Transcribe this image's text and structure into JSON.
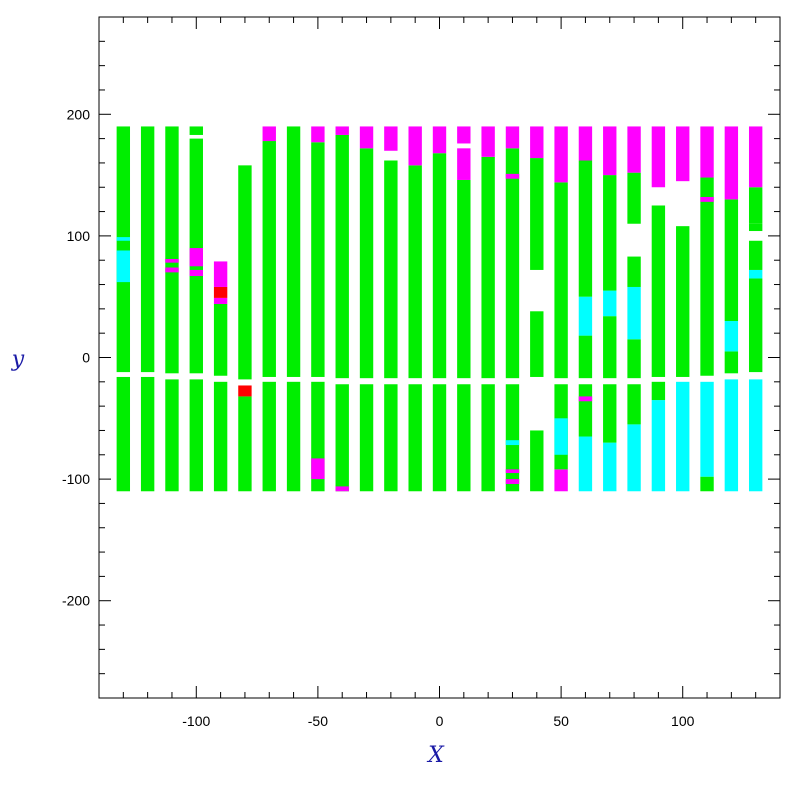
{
  "chart_data": {
    "type": "heatmap",
    "title": "",
    "xlabel": "X",
    "ylabel": "y",
    "xlim": [
      -140,
      140
    ],
    "ylim": [
      -280,
      280
    ],
    "x_ticks": [
      -100,
      -50,
      0,
      50,
      100
    ],
    "y_ticks": [
      -200,
      -100,
      0,
      100,
      200
    ],
    "grid": false,
    "legend": "none",
    "colors": {
      "green": "#00ee00",
      "magenta": "#ff00ff",
      "cyan": "#00ffff",
      "red": "#ff0000",
      "background": "#ffffff"
    },
    "strip_width": 5.5,
    "strips": [
      {
        "x": -130,
        "segments": [
          {
            "y0": -110,
            "y1": -16,
            "color": "green"
          },
          {
            "y0": -12,
            "y1": 190,
            "color": "green"
          },
          {
            "y0": 62,
            "y1": 88,
            "color": "cyan"
          },
          {
            "y0": 96,
            "y1": 99,
            "color": "cyan"
          }
        ]
      },
      {
        "x": -120,
        "segments": [
          {
            "y0": -110,
            "y1": -16,
            "color": "green"
          },
          {
            "y0": -12,
            "y1": 190,
            "color": "green"
          }
        ]
      },
      {
        "x": -110,
        "segments": [
          {
            "y0": -110,
            "y1": -18,
            "color": "green"
          },
          {
            "y0": -13,
            "y1": 190,
            "color": "green"
          },
          {
            "y0": 70,
            "y1": 74,
            "color": "magenta"
          },
          {
            "y0": 78,
            "y1": 81,
            "color": "magenta"
          }
        ]
      },
      {
        "x": -100,
        "segments": [
          {
            "y0": -110,
            "y1": -18,
            "color": "green"
          },
          {
            "y0": -13,
            "y1": 180,
            "color": "green"
          },
          {
            "y0": 183,
            "y1": 190,
            "color": "green"
          },
          {
            "y0": 67,
            "y1": 72,
            "color": "magenta"
          },
          {
            "y0": 75,
            "y1": 90,
            "color": "magenta"
          }
        ]
      },
      {
        "x": -90,
        "segments": [
          {
            "y0": -110,
            "y1": -20,
            "color": "green"
          },
          {
            "y0": -15,
            "y1": 44,
            "color": "green"
          },
          {
            "y0": 44,
            "y1": 49,
            "color": "magenta"
          },
          {
            "y0": 49,
            "y1": 58,
            "color": "red"
          },
          {
            "y0": 58,
            "y1": 79,
            "color": "magenta"
          }
        ]
      },
      {
        "x": -80,
        "segments": [
          {
            "y0": -110,
            "y1": -32,
            "color": "green"
          },
          {
            "y0": -32,
            "y1": -23,
            "color": "red"
          },
          {
            "y0": -18,
            "y1": 158,
            "color": "green"
          }
        ]
      },
      {
        "x": -70,
        "segments": [
          {
            "y0": -110,
            "y1": -20,
            "color": "green"
          },
          {
            "y0": -16,
            "y1": 178,
            "color": "green"
          },
          {
            "y0": 178,
            "y1": 190,
            "color": "magenta"
          }
        ]
      },
      {
        "x": -60,
        "segments": [
          {
            "y0": -110,
            "y1": -20,
            "color": "green"
          },
          {
            "y0": -16,
            "y1": 190,
            "color": "green"
          }
        ]
      },
      {
        "x": -50,
        "segments": [
          {
            "y0": -110,
            "y1": -20,
            "color": "green"
          },
          {
            "y0": -100,
            "y1": -83,
            "color": "magenta"
          },
          {
            "y0": -16,
            "y1": 177,
            "color": "green"
          },
          {
            "y0": 177,
            "y1": 190,
            "color": "magenta"
          }
        ]
      },
      {
        "x": -40,
        "segments": [
          {
            "y0": -110,
            "y1": -22,
            "color": "green"
          },
          {
            "y0": -110,
            "y1": -106,
            "color": "magenta"
          },
          {
            "y0": -17,
            "y1": 183,
            "color": "green"
          },
          {
            "y0": 183,
            "y1": 190,
            "color": "magenta"
          }
        ]
      },
      {
        "x": -30,
        "segments": [
          {
            "y0": -110,
            "y1": -22,
            "color": "green"
          },
          {
            "y0": -17,
            "y1": 172,
            "color": "green"
          },
          {
            "y0": 172,
            "y1": 190,
            "color": "magenta"
          }
        ]
      },
      {
        "x": -20,
        "segments": [
          {
            "y0": -110,
            "y1": -22,
            "color": "green"
          },
          {
            "y0": -17,
            "y1": 162,
            "color": "green"
          },
          {
            "y0": 170,
            "y1": 190,
            "color": "magenta"
          }
        ]
      },
      {
        "x": -10,
        "segments": [
          {
            "y0": -110,
            "y1": -22,
            "color": "green"
          },
          {
            "y0": -17,
            "y1": 158,
            "color": "green"
          },
          {
            "y0": 158,
            "y1": 190,
            "color": "magenta"
          }
        ]
      },
      {
        "x": 0,
        "segments": [
          {
            "y0": -110,
            "y1": -22,
            "color": "green"
          },
          {
            "y0": -17,
            "y1": 168,
            "color": "green"
          },
          {
            "y0": 168,
            "y1": 190,
            "color": "magenta"
          }
        ]
      },
      {
        "x": 10,
        "segments": [
          {
            "y0": -110,
            "y1": -22,
            "color": "green"
          },
          {
            "y0": -17,
            "y1": 146,
            "color": "green"
          },
          {
            "y0": 146,
            "y1": 172,
            "color": "magenta"
          },
          {
            "y0": 176,
            "y1": 190,
            "color": "magenta"
          }
        ]
      },
      {
        "x": 20,
        "segments": [
          {
            "y0": -110,
            "y1": -22,
            "color": "green"
          },
          {
            "y0": -17,
            "y1": 165,
            "color": "green"
          },
          {
            "y0": 165,
            "y1": 190,
            "color": "magenta"
          }
        ]
      },
      {
        "x": 30,
        "segments": [
          {
            "y0": -110,
            "y1": -22,
            "color": "green"
          },
          {
            "y0": -104,
            "y1": -100,
            "color": "magenta"
          },
          {
            "y0": -95,
            "y1": -92,
            "color": "magenta"
          },
          {
            "y0": -72,
            "y1": -68,
            "color": "cyan"
          },
          {
            "y0": -17,
            "y1": 172,
            "color": "green"
          },
          {
            "y0": 147,
            "y1": 151,
            "color": "magenta"
          },
          {
            "y0": 172,
            "y1": 190,
            "color": "magenta"
          }
        ]
      },
      {
        "x": 40,
        "segments": [
          {
            "y0": -110,
            "y1": -60,
            "color": "green"
          },
          {
            "y0": -16,
            "y1": 38,
            "color": "green"
          },
          {
            "y0": 72,
            "y1": 164,
            "color": "green"
          },
          {
            "y0": 164,
            "y1": 190,
            "color": "magenta"
          }
        ]
      },
      {
        "x": 50,
        "segments": [
          {
            "y0": -110,
            "y1": -92,
            "color": "magenta"
          },
          {
            "y0": -92,
            "y1": -22,
            "color": "green"
          },
          {
            "y0": -80,
            "y1": -50,
            "color": "cyan"
          },
          {
            "y0": -17,
            "y1": 144,
            "color": "green"
          },
          {
            "y0": 144,
            "y1": 190,
            "color": "magenta"
          }
        ]
      },
      {
        "x": 60,
        "segments": [
          {
            "y0": -110,
            "y1": -65,
            "color": "cyan"
          },
          {
            "y0": -65,
            "y1": -22,
            "color": "green"
          },
          {
            "y0": -36,
            "y1": -32,
            "color": "magenta"
          },
          {
            "y0": -17,
            "y1": 18,
            "color": "green"
          },
          {
            "y0": 18,
            "y1": 50,
            "color": "cyan"
          },
          {
            "y0": 50,
            "y1": 162,
            "color": "green"
          },
          {
            "y0": 162,
            "y1": 190,
            "color": "magenta"
          }
        ]
      },
      {
        "x": 70,
        "segments": [
          {
            "y0": -110,
            "y1": -70,
            "color": "cyan"
          },
          {
            "y0": -70,
            "y1": -22,
            "color": "green"
          },
          {
            "y0": -17,
            "y1": 34,
            "color": "green"
          },
          {
            "y0": 34,
            "y1": 55,
            "color": "cyan"
          },
          {
            "y0": 55,
            "y1": 150,
            "color": "green"
          },
          {
            "y0": 150,
            "y1": 190,
            "color": "magenta"
          }
        ]
      },
      {
        "x": 80,
        "segments": [
          {
            "y0": -110,
            "y1": -55,
            "color": "cyan"
          },
          {
            "y0": -55,
            "y1": -22,
            "color": "green"
          },
          {
            "y0": -17,
            "y1": 15,
            "color": "green"
          },
          {
            "y0": 15,
            "y1": 58,
            "color": "cyan"
          },
          {
            "y0": 58,
            "y1": 83,
            "color": "green"
          },
          {
            "y0": 110,
            "y1": 152,
            "color": "green"
          },
          {
            "y0": 152,
            "y1": 190,
            "color": "magenta"
          }
        ]
      },
      {
        "x": 90,
        "segments": [
          {
            "y0": -110,
            "y1": -35,
            "color": "cyan"
          },
          {
            "y0": -35,
            "y1": -20,
            "color": "green"
          },
          {
            "y0": -16,
            "y1": 125,
            "color": "green"
          },
          {
            "y0": 140,
            "y1": 190,
            "color": "magenta"
          }
        ]
      },
      {
        "x": 100,
        "segments": [
          {
            "y0": -110,
            "y1": -20,
            "color": "cyan"
          },
          {
            "y0": -16,
            "y1": 108,
            "color": "green"
          },
          {
            "y0": 145,
            "y1": 190,
            "color": "magenta"
          }
        ]
      },
      {
        "x": 110,
        "segments": [
          {
            "y0": -110,
            "y1": -98,
            "color": "green"
          },
          {
            "y0": -98,
            "y1": -20,
            "color": "cyan"
          },
          {
            "y0": -15,
            "y1": 148,
            "color": "green"
          },
          {
            "y0": 128,
            "y1": 132,
            "color": "magenta"
          },
          {
            "y0": 148,
            "y1": 190,
            "color": "magenta"
          }
        ]
      },
      {
        "x": 120,
        "segments": [
          {
            "y0": -110,
            "y1": -18,
            "color": "cyan"
          },
          {
            "y0": -13,
            "y1": 5,
            "color": "green"
          },
          {
            "y0": 5,
            "y1": 30,
            "color": "cyan"
          },
          {
            "y0": 30,
            "y1": 130,
            "color": "green"
          },
          {
            "y0": 130,
            "y1": 190,
            "color": "magenta"
          }
        ]
      },
      {
        "x": 130,
        "segments": [
          {
            "y0": -110,
            "y1": -18,
            "color": "cyan"
          },
          {
            "y0": -12,
            "y1": 65,
            "color": "green"
          },
          {
            "y0": 65,
            "y1": 72,
            "color": "cyan"
          },
          {
            "y0": 72,
            "y1": 96,
            "color": "green"
          },
          {
            "y0": 104,
            "y1": 110,
            "color": "green"
          },
          {
            "y0": 110,
            "y1": 140,
            "color": "green"
          },
          {
            "y0": 140,
            "y1": 190,
            "color": "magenta"
          }
        ]
      }
    ]
  }
}
